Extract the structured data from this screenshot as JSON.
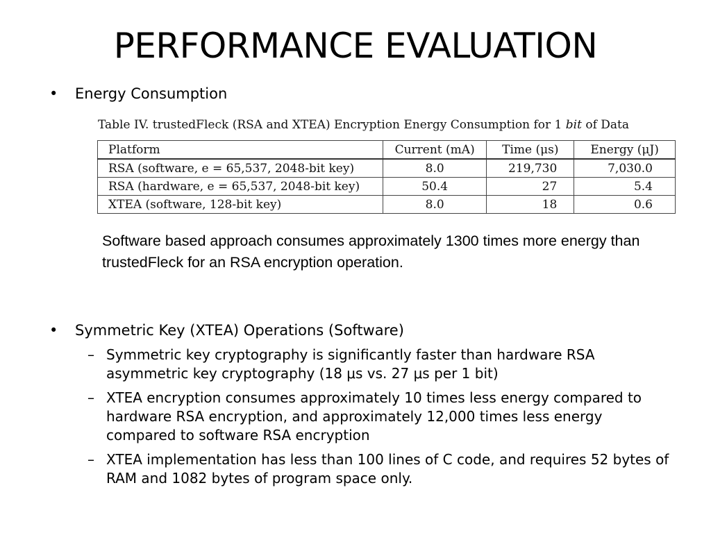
{
  "slide": {
    "title": "PERFORMANCE EVALUATION"
  },
  "bullets": [
    {
      "marker": "•",
      "text": "Energy Consumption"
    },
    {
      "marker": "•",
      "text": "Symmetric Key (XTEA) Operations (Software)"
    }
  ],
  "table": {
    "caption_prefix": "Table IV.  trustedFleck (RSA and XTEA) Encryption Energy Consumption for 1 ",
    "caption_italic": "bit",
    "caption_suffix": " of Data",
    "headers": [
      "Platform",
      "Current (mA)",
      "Time (μs)",
      "Energy (μJ)"
    ],
    "rows": [
      [
        "RSA (software, e = 65,537, 2048-bit key)",
        "8.0",
        "219,730",
        "7,030.0"
      ],
      [
        "RSA (hardware, e = 65,537, 2048-bit key)",
        "50.4",
        "27",
        "5.4"
      ],
      [
        "XTEA (software, 128-bit key)",
        "8.0",
        "18",
        "0.6"
      ]
    ]
  },
  "note": "Software based approach consumes approximately 1300 times more energy than trustedFleck for an RSA encryption operation.",
  "sub_bullets": [
    {
      "marker": "–",
      "text": " Symmetric key cryptography is significantly faster than hardware RSA asymmetric key cryptography (18 μs vs. 27 μs per 1 bit)"
    },
    {
      "marker": "–",
      "text": "XTEA encryption consumes approximately 10 times less energy compared to hardware RSA encryption, and approximately 12,000 times less energy compared to software RSA encryption"
    },
    {
      "marker": "–",
      "text": "XTEA implementation has less than 100 lines of C code, and requires 52 bytes of RAM and 1082 bytes of program space only."
    }
  ]
}
